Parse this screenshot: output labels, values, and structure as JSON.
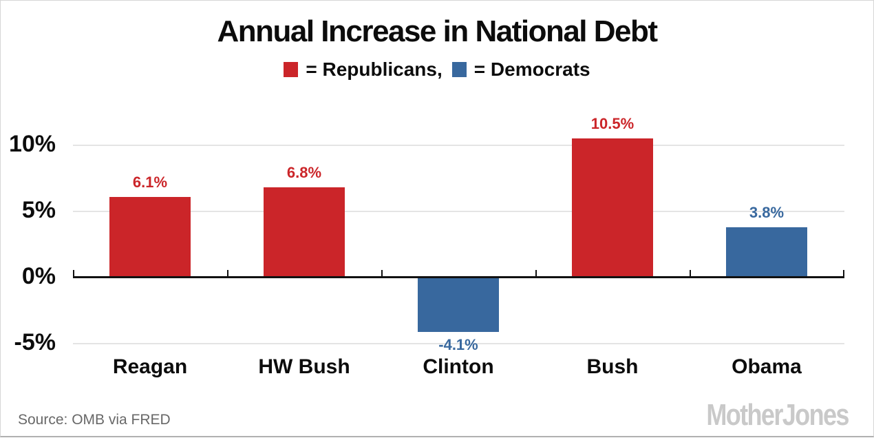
{
  "page": {
    "title": "Annual Increase in National Debt",
    "source": "Source: OMB via FRED",
    "watermark": "MotherJones"
  },
  "legend": {
    "items": [
      {
        "label": "= Republicans,",
        "party": "republican"
      },
      {
        "label": "= Democrats",
        "party": "democrat"
      }
    ]
  },
  "chart_data": {
    "type": "bar",
    "title": "Annual Increase in National Debt",
    "categories": [
      "Reagan",
      "HW Bush",
      "Clinton",
      "Bush",
      "Obama"
    ],
    "values": [
      6.1,
      6.8,
      -4.1,
      10.5,
      3.8
    ],
    "value_labels": [
      "6.1%",
      "6.8%",
      "-4.1%",
      "10.5%",
      "3.8%"
    ],
    "parties": [
      "republican",
      "republican",
      "democrat",
      "republican",
      "democrat"
    ],
    "colors": {
      "republican": "#cb2529",
      "democrat": "#38689e"
    },
    "y_ticks": [
      {
        "label": "10%",
        "value": 10
      },
      {
        "label": "5%",
        "value": 5
      },
      {
        "label": "0%",
        "value": 0
      },
      {
        "label": "-5%",
        "value": -5
      }
    ],
    "ylim": [
      -5.5,
      12
    ],
    "xlabel": "",
    "ylabel": "",
    "grid": "horizontal",
    "legend_position": "top-center",
    "source": "Source: OMB via FRED"
  }
}
